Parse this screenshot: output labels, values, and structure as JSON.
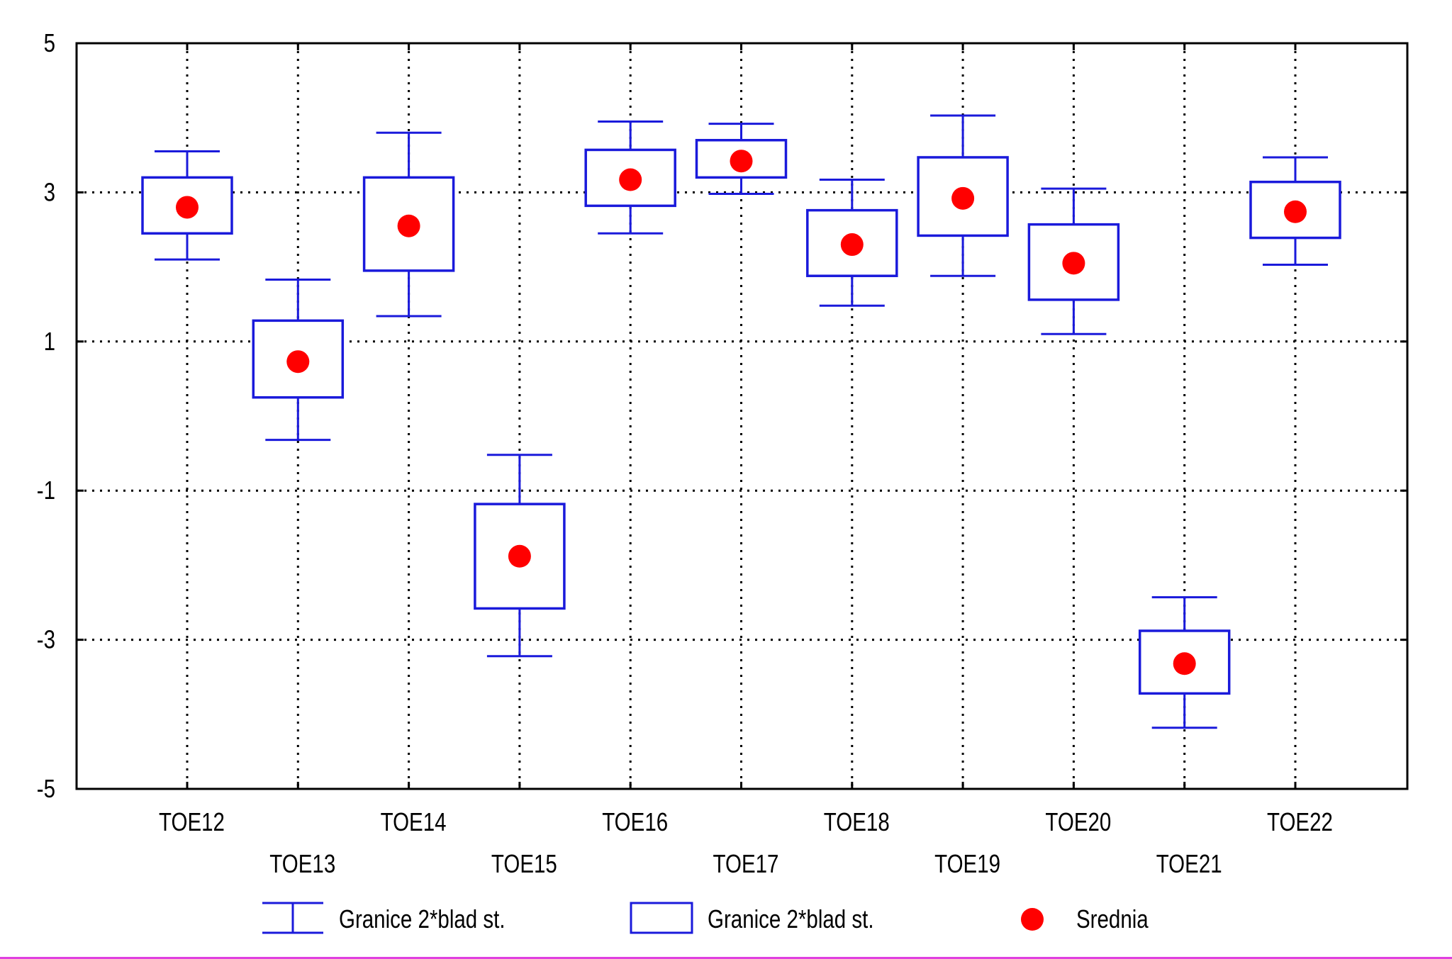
{
  "colors": {
    "box": "#1a1adb",
    "mean": "#ff0000",
    "axis": "#000000",
    "grid": "#000000",
    "bottom_strip": "#e040e0"
  },
  "chart_data": {
    "type": "box",
    "title": "",
    "xlabel": "",
    "ylabel": "",
    "ylim": [
      -5,
      5
    ],
    "yticks": [
      "5",
      "3",
      "1",
      "-1",
      "-3",
      "-5"
    ],
    "ytick_values": [
      5,
      3,
      1,
      -1,
      -3,
      -5
    ],
    "grid": true,
    "legend_position": "bottom",
    "categories": [
      "TOE12",
      "TOE13",
      "TOE14",
      "TOE15",
      "TOE16",
      "TOE17",
      "TOE18",
      "TOE19",
      "TOE20",
      "TOE21",
      "TOE22"
    ],
    "series": [
      {
        "name": "Srednia",
        "values": [
          2.8,
          0.73,
          2.55,
          -1.88,
          3.17,
          3.42,
          2.3,
          2.92,
          2.05,
          -3.32,
          2.74
        ]
      },
      {
        "name": "Granice 2*blad st.",
        "box_low": [
          2.45,
          0.25,
          1.95,
          -2.58,
          2.82,
          3.2,
          1.88,
          2.42,
          1.56,
          -3.72,
          2.39
        ],
        "box_high": [
          3.2,
          1.28,
          3.2,
          -1.18,
          3.57,
          3.7,
          2.76,
          3.47,
          2.57,
          -2.88,
          3.14
        ]
      },
      {
        "name": "Granice 2*blad st.",
        "whisker_low": [
          2.1,
          -0.32,
          1.34,
          -3.22,
          2.45,
          2.98,
          1.48,
          1.88,
          1.1,
          -4.18,
          2.03
        ],
        "whisker_high": [
          3.55,
          1.83,
          3.8,
          -0.52,
          3.95,
          3.92,
          3.17,
          4.03,
          3.05,
          -2.43,
          3.47
        ]
      }
    ],
    "legend": [
      {
        "kind": "whisker",
        "label": "Granice 2*blad st."
      },
      {
        "kind": "box",
        "label": "Granice 2*blad st."
      },
      {
        "kind": "point",
        "label": "Srednia"
      }
    ]
  }
}
